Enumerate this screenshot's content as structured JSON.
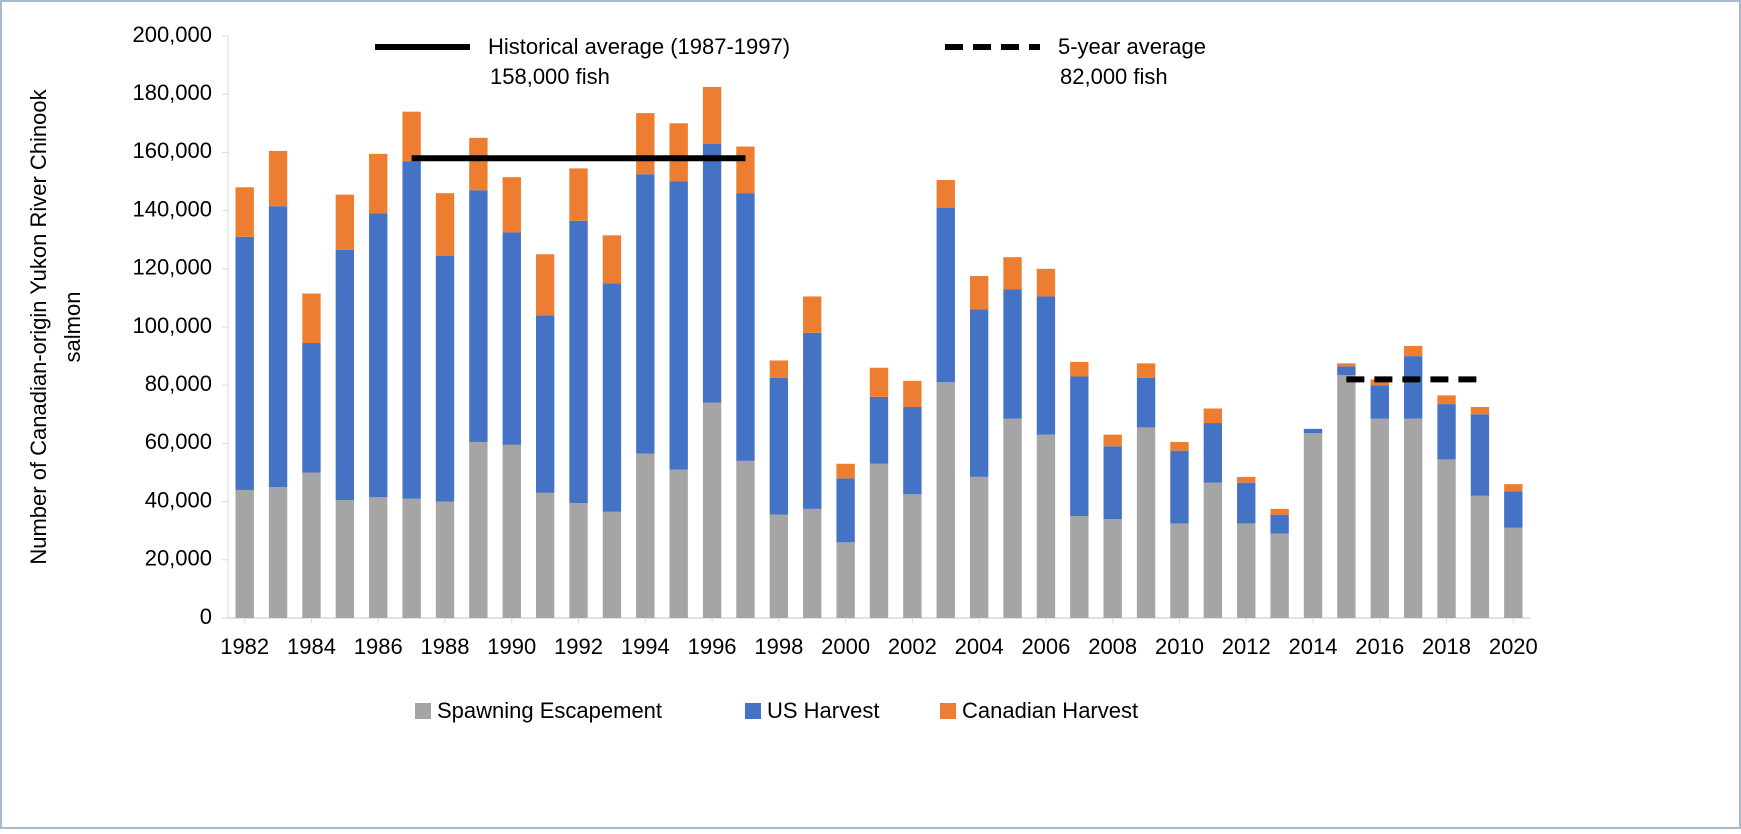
{
  "chart_data": {
    "type": "stacked_bar",
    "ylabel": [
      "Number of  Canadian-origin Yukon River Chinook",
      "salmon"
    ],
    "x": [
      1982,
      1983,
      1984,
      1985,
      1986,
      1987,
      1988,
      1989,
      1990,
      1991,
      1992,
      1993,
      1994,
      1995,
      1996,
      1997,
      1998,
      1999,
      2000,
      2001,
      2002,
      2003,
      2004,
      2005,
      2006,
      2007,
      2008,
      2009,
      2010,
      2011,
      2012,
      2013,
      2014,
      2015,
      2016,
      2017,
      2018,
      2019,
      2020
    ],
    "xlim": [
      1981.5,
      2020.5
    ],
    "xticks": [
      1982,
      1984,
      1986,
      1988,
      1990,
      1992,
      1994,
      1996,
      1998,
      2000,
      2002,
      2004,
      2006,
      2008,
      2010,
      2012,
      2014,
      2016,
      2018,
      2020
    ],
    "ylim": [
      0,
      200000
    ],
    "yticks": [
      {
        "value": 0,
        "label": "0"
      },
      {
        "value": 20000,
        "label": "20,000"
      },
      {
        "value": 40000,
        "label": "40,000"
      },
      {
        "value": 60000,
        "label": "60,000"
      },
      {
        "value": 80000,
        "label": "80,000"
      },
      {
        "value": 100000,
        "label": "100,000"
      },
      {
        "value": 120000,
        "label": "120,000"
      },
      {
        "value": 140000,
        "label": "140,000"
      },
      {
        "value": 160000,
        "label": "160,000"
      },
      {
        "value": 180000,
        "label": "180,000"
      },
      {
        "value": 200000,
        "label": "200,000"
      }
    ],
    "series": [
      {
        "name": "Spawning Escapement",
        "color": "#a5a5a5",
        "values": [
          44000,
          45000,
          50000,
          40500,
          41500,
          41000,
          40000,
          60500,
          59500,
          43000,
          39500,
          36500,
          56500,
          51000,
          74000,
          54000,
          35500,
          37500,
          26000,
          53000,
          42500,
          81000,
          48500,
          68500,
          63000,
          35000,
          34000,
          65500,
          32500,
          46500,
          32500,
          29000,
          63500,
          83500,
          68500,
          68500,
          54500,
          42000,
          31000
        ]
      },
      {
        "name": "US Harvest",
        "color": "#4472c4",
        "values": [
          87000,
          96500,
          44500,
          86000,
          97500,
          116000,
          84500,
          86500,
          73000,
          61000,
          97000,
          78500,
          96000,
          99000,
          89000,
          92000,
          47000,
          60500,
          22000,
          23000,
          30000,
          60000,
          57500,
          44500,
          47500,
          48000,
          25000,
          17000,
          25000,
          20500,
          14000,
          6500,
          1500,
          3000,
          11500,
          21500,
          19000,
          28000,
          12500
        ]
      },
      {
        "name": "Canadian Harvest",
        "color": "#ed7d31",
        "values": [
          17000,
          19000,
          17000,
          19000,
          20500,
          17000,
          21500,
          18000,
          19000,
          21000,
          18000,
          16500,
          21000,
          20000,
          19500,
          16000,
          6000,
          12500,
          5000,
          10000,
          9000,
          9500,
          11500,
          11000,
          9500,
          5000,
          4000,
          5000,
          3000,
          5000,
          2000,
          2000,
          0,
          1000,
          2000,
          3500,
          3000,
          2500,
          2500
        ]
      }
    ],
    "reference_lines": [
      {
        "label": "Historical average (1987-1997)",
        "value": 158000,
        "value_label": "158,000 fish",
        "x_range": [
          1987,
          1997
        ],
        "style": "solid",
        "color": "#000000"
      },
      {
        "label": "5-year average",
        "value": 82000,
        "value_label": "82,000 fish",
        "x_range": [
          2015,
          2019
        ],
        "style": "dashed",
        "color": "#000000"
      }
    ],
    "legend": "bottom"
  }
}
